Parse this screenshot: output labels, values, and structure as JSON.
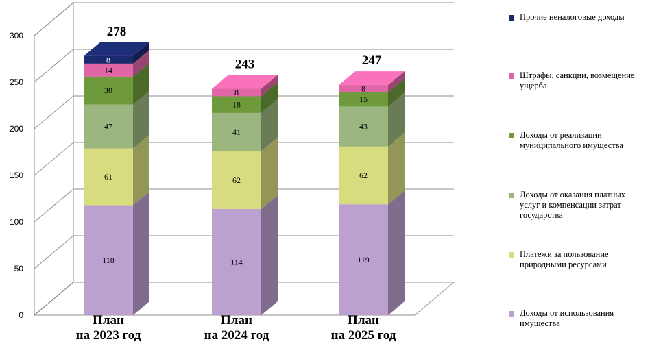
{
  "chart_data": {
    "type": "bar",
    "stacked": true,
    "three_d": true,
    "categories": [
      "План\nна 2023 год",
      "План\nна 2024 год",
      "План\nна 2025 год"
    ],
    "totals": [
      278,
      243,
      247
    ],
    "ylim": [
      0,
      300
    ],
    "yticks": [
      0,
      50,
      100,
      150,
      200,
      250,
      300
    ],
    "grid": true,
    "legend_position": "right",
    "series": [
      {
        "name": "Доходы от использования имущества",
        "values": [
          118,
          114,
          119
        ],
        "color": "#BCA0CF"
      },
      {
        "name": "Платежи за пользование природными ресурсами",
        "values": [
          61,
          62,
          62
        ],
        "color": "#D7DC7E"
      },
      {
        "name": "Доходы от оказания платных услуг и компенсации затрат государства",
        "values": [
          47,
          41,
          43
        ],
        "color": "#9BB77F"
      },
      {
        "name": "Доходы от реализации муниципального имущества",
        "values": [
          30,
          18,
          15
        ],
        "color": "#6E9A3C"
      },
      {
        "name": "Штрафы, санкции, возмещение ущерба",
        "values": [
          14,
          8,
          8
        ],
        "color": "#E066A8"
      },
      {
        "name": "Прочие неналоговые доходы",
        "values": [
          8,
          null,
          null
        ],
        "color": "#1A2A6C"
      }
    ],
    "legend_order": [
      5,
      4,
      3,
      2,
      1,
      0
    ]
  }
}
